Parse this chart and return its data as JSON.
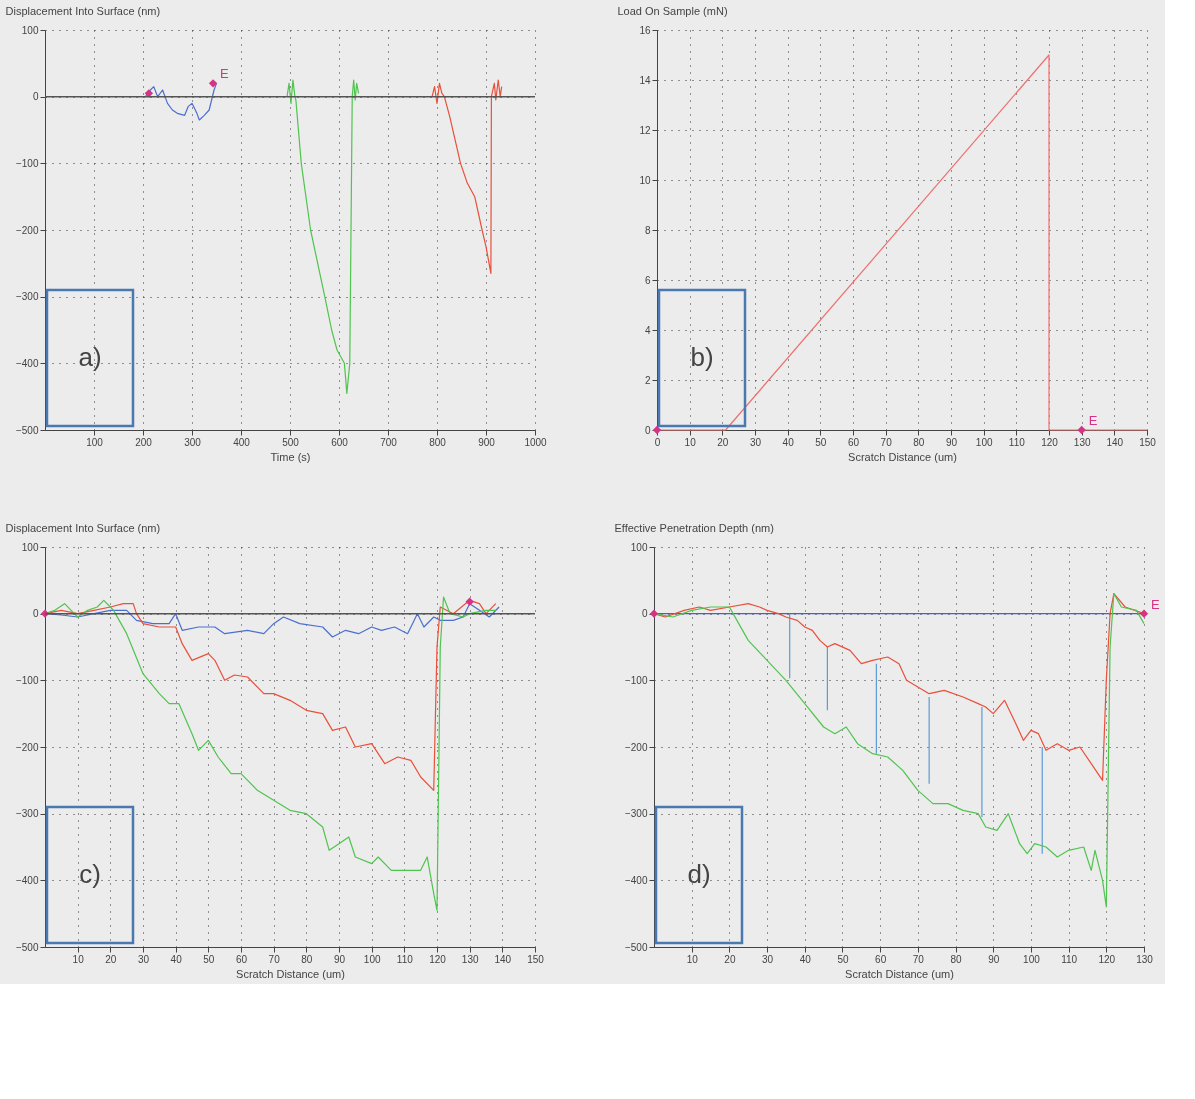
{
  "chart_data": [
    {
      "type": "line",
      "xlabel": "Time (s)",
      "ylabel": "Displacement Into Surface (nm)",
      "xlim": [
        0,
        1000
      ],
      "xticks": [
        100,
        200,
        300,
        400,
        500,
        600,
        700,
        800,
        900,
        1000
      ],
      "ylim": [
        -500,
        100
      ],
      "yticks": [
        -500,
        -400,
        -300,
        -200,
        -100,
        0,
        100
      ],
      "grid": true,
      "ref_lines": [
        {
          "axis": "y",
          "value": 0,
          "color": "#555555"
        }
      ],
      "annotations": [
        "a)",
        "E"
      ],
      "series": [
        {
          "color": "#4a6fd0",
          "x": [
            205,
            215,
            222,
            230,
            240,
            250,
            260,
            270,
            285,
            292,
            300,
            310,
            315,
            325,
            335,
            340,
            345,
            350
          ],
          "values": [
            0,
            10,
            15,
            0,
            10,
            -10,
            -20,
            -25,
            -28,
            -15,
            -10,
            -25,
            -35,
            -28,
            -20,
            -5,
            10,
            20
          ]
        },
        {
          "color": "#4fc44f",
          "x": [
            494,
            498,
            502,
            506,
            510,
            512,
            523,
            542,
            571,
            585,
            596,
            611,
            616,
            622,
            627,
            630,
            633,
            636,
            640
          ],
          "values": [
            0,
            20,
            -10,
            25,
            0,
            -5,
            -100,
            -200,
            -300,
            -350,
            -380,
            -400,
            -445,
            -400,
            0,
            25,
            -5,
            20,
            5
          ]
        },
        {
          "color": "#e8503a",
          "x": [
            790,
            795,
            800,
            805,
            810,
            815,
            826,
            848,
            862,
            877,
            892,
            900,
            910,
            911,
            917,
            920,
            925,
            929,
            932
          ],
          "values": [
            0,
            15,
            -10,
            20,
            5,
            0,
            -30,
            -100,
            -130,
            -150,
            -200,
            -225,
            -265,
            0,
            20,
            -5,
            25,
            0,
            15
          ]
        },
        {
          "type": "scatter",
          "marker": "diamond",
          "color": "#d63384",
          "x": [
            212,
            343
          ],
          "values": [
            5,
            20
          ]
        }
      ]
    },
    {
      "type": "line",
      "xlabel": "Scratch Distance (um)",
      "ylabel": "Load On Sample (mN)",
      "xlim": [
        0,
        150
      ],
      "xticks": [
        0,
        10,
        20,
        30,
        40,
        50,
        60,
        70,
        80,
        90,
        100,
        110,
        120,
        130,
        140,
        150
      ],
      "ylim": [
        0,
        16
      ],
      "yticks": [
        0,
        2,
        4,
        6,
        8,
        10,
        12,
        14,
        16
      ],
      "grid": true,
      "annotations": [
        "b)",
        "E"
      ],
      "series": [
        {
          "color": "#ee6f6f",
          "x": [
            0,
            21,
            120,
            120,
            150
          ],
          "values": [
            0,
            0,
            15,
            0,
            0
          ]
        },
        {
          "type": "scatter",
          "marker": "diamond",
          "color": "#d63384",
          "x": [
            0,
            130
          ],
          "values": [
            0,
            0
          ]
        }
      ]
    },
    {
      "type": "line",
      "xlabel": "Scratch Distance (um)",
      "ylabel": "Displacement Into Surface (nm)",
      "xlim": [
        0,
        150
      ],
      "xticks": [
        10,
        20,
        30,
        40,
        50,
        60,
        70,
        80,
        90,
        100,
        110,
        120,
        130,
        140,
        150
      ],
      "ylim": [
        -500,
        100
      ],
      "yticks": [
        -500,
        -400,
        -300,
        -200,
        -100,
        0,
        100
      ],
      "grid": true,
      "ref_lines": [
        {
          "axis": "y",
          "value": 0,
          "color": "#555555"
        }
      ],
      "annotations": [
        "c)"
      ],
      "series": [
        {
          "color": "#4a6fd0",
          "x": [
            0,
            5,
            10,
            15,
            20,
            25,
            28,
            33,
            38,
            40,
            42,
            47,
            52,
            55,
            62,
            67,
            70,
            73,
            78,
            85,
            88,
            92,
            96,
            100,
            103,
            107,
            111,
            114,
            116,
            119,
            121,
            125,
            128,
            130,
            133,
            136,
            139
          ],
          "values": [
            0,
            -2,
            -5,
            0,
            5,
            5,
            -10,
            -15,
            -15,
            0,
            -25,
            -20,
            -20,
            -30,
            -25,
            -30,
            -15,
            -5,
            -15,
            -20,
            -35,
            -25,
            -30,
            -20,
            -25,
            -20,
            -30,
            0,
            -20,
            -5,
            -10,
            -10,
            -5,
            15,
            5,
            -5,
            10
          ]
        },
        {
          "color": "#e8503a",
          "x": [
            0,
            5,
            10,
            15,
            20,
            24,
            27,
            28,
            30,
            35,
            40,
            42,
            45,
            50,
            52,
            55,
            58,
            62,
            67,
            70,
            75,
            80,
            85,
            88,
            92,
            95,
            100,
            104,
            108,
            112,
            115,
            119,
            120,
            121,
            125,
            130,
            133,
            135,
            138
          ],
          "values": [
            0,
            5,
            0,
            5,
            10,
            15,
            15,
            0,
            -15,
            -20,
            -20,
            -45,
            -70,
            -60,
            -70,
            -100,
            -92,
            -95,
            -120,
            -120,
            -130,
            -145,
            -150,
            -175,
            -170,
            -200,
            -195,
            -225,
            -215,
            -220,
            -245,
            -265,
            -50,
            10,
            0,
            20,
            15,
            0,
            15
          ]
        },
        {
          "color": "#4fc44f",
          "x": [
            0,
            3,
            6,
            8,
            10,
            13,
            16,
            18,
            20,
            21,
            25,
            30,
            35,
            38,
            41,
            45,
            47,
            50,
            53,
            57,
            60,
            65,
            70,
            75,
            80,
            85,
            87,
            90,
            93,
            95,
            100,
            102,
            106,
            110,
            115,
            117,
            119,
            120,
            121,
            122,
            124,
            128,
            130,
            135,
            138
          ],
          "values": [
            0,
            5,
            15,
            5,
            -5,
            5,
            10,
            20,
            10,
            5,
            -30,
            -90,
            -120,
            -135,
            -135,
            -180,
            -205,
            -190,
            -215,
            -240,
            -240,
            -265,
            -280,
            -295,
            -300,
            -320,
            -355,
            -345,
            -335,
            -365,
            -375,
            -365,
            -385,
            -385,
            -385,
            -365,
            -420,
            -445,
            -50,
            25,
            0,
            -5,
            0,
            5,
            5
          ]
        },
        {
          "type": "scatter",
          "marker": "diamond",
          "color": "#d63384",
          "x": [
            0,
            130
          ],
          "values": [
            0,
            18
          ]
        }
      ]
    },
    {
      "type": "line",
      "xlabel": "Scratch Distance (um)",
      "ylabel": "Effective Penetration Depth (nm)",
      "xlim": [
        0,
        130
      ],
      "xticks": [
        10,
        20,
        30,
        40,
        50,
        60,
        70,
        80,
        90,
        100,
        110,
        120,
        130
      ],
      "ylim": [
        -500,
        100
      ],
      "yticks": [
        -500,
        -400,
        -300,
        -200,
        -100,
        0,
        100
      ],
      "grid": true,
      "annotations": [
        "d)",
        "E"
      ],
      "series": [
        {
          "color": "#4a5fc1",
          "x": [
            0,
            130
          ],
          "values": [
            0,
            0
          ]
        },
        {
          "color": "#5b9bd5",
          "x": [
            36,
            36
          ],
          "values": [
            0,
            -97
          ]
        },
        {
          "color": "#5b9bd5",
          "x": [
            46,
            46
          ],
          "values": [
            -50,
            -145
          ]
        },
        {
          "color": "#5b9bd5",
          "x": [
            59,
            59
          ],
          "values": [
            -75,
            -210
          ]
        },
        {
          "color": "#5b9bd5",
          "x": [
            73,
            73
          ],
          "values": [
            -125,
            -255
          ]
        },
        {
          "color": "#5b9bd5",
          "x": [
            87,
            87
          ],
          "values": [
            -140,
            -305
          ]
        },
        {
          "color": "#5b9bd5",
          "x": [
            103,
            103
          ],
          "values": [
            -200,
            -360
          ]
        },
        {
          "color": "#e8503a",
          "x": [
            0,
            3,
            8,
            12,
            15,
            20,
            25,
            28,
            30,
            33,
            35,
            38,
            40,
            42,
            44,
            46,
            48,
            52,
            55,
            58,
            62,
            65,
            67,
            70,
            73,
            77,
            82,
            86,
            88,
            90,
            93,
            96,
            98,
            100,
            102,
            104,
            107,
            110,
            113,
            116,
            119,
            120,
            121,
            122,
            125,
            130
          ],
          "values": [
            0,
            -5,
            5,
            10,
            5,
            10,
            15,
            10,
            5,
            0,
            -5,
            -10,
            -20,
            -25,
            -40,
            -50,
            -45,
            -55,
            -75,
            -70,
            -65,
            -75,
            -100,
            -110,
            -120,
            -115,
            -125,
            -135,
            -140,
            -150,
            -130,
            -165,
            -190,
            -175,
            -180,
            -205,
            -195,
            -205,
            -200,
            -225,
            -250,
            -100,
            0,
            30,
            10,
            0
          ]
        },
        {
          "color": "#4fc44f",
          "x": [
            0,
            5,
            10,
            15,
            20,
            22,
            25,
            30,
            35,
            40,
            45,
            48,
            51,
            54,
            58,
            62,
            66,
            70,
            74,
            78,
            82,
            86,
            88,
            91,
            94,
            97,
            99,
            101,
            104,
            107,
            110,
            114,
            116,
            117,
            119,
            120,
            121,
            122,
            124,
            128,
            130
          ],
          "values": [
            0,
            -5,
            5,
            10,
            10,
            -10,
            -40,
            -70,
            -100,
            -135,
            -170,
            -180,
            -170,
            -195,
            -210,
            -215,
            -235,
            -265,
            -285,
            -285,
            -295,
            -300,
            -320,
            -325,
            -300,
            -345,
            -360,
            -345,
            -350,
            -365,
            -355,
            -350,
            -385,
            -355,
            -400,
            -440,
            -50,
            30,
            10,
            5,
            -15
          ]
        },
        {
          "type": "scatter",
          "marker": "diamond",
          "color": "#d63384",
          "x": [
            0,
            130
          ],
          "values": [
            0,
            0
          ]
        }
      ]
    }
  ]
}
